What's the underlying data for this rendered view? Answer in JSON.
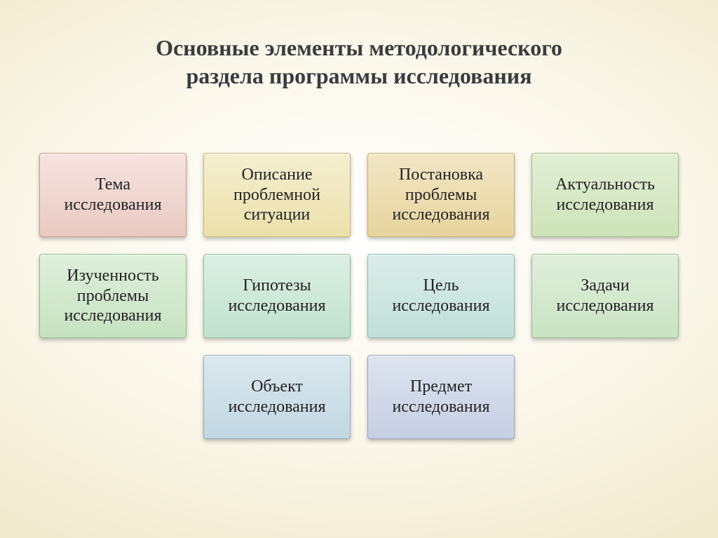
{
  "title_line1": "Основные элементы методологического",
  "title_line2": "раздела программы исследования",
  "title_fontsize": 32,
  "title_color": "#3b3b3b",
  "box_fontsize": 24,
  "boxes": [
    {
      "label": "Тема исследования",
      "row": 1,
      "col": 1,
      "bg_top": "#f7e4e0",
      "bg_bot": "#e9c9c2",
      "border": "#c59a90"
    },
    {
      "label": "Описание проблемной ситуации",
      "row": 1,
      "col": 2,
      "bg_top": "#f5efd0",
      "bg_bot": "#ece0ac",
      "border": "#c9b877"
    },
    {
      "label": "Постановка проблемы исследования",
      "row": 1,
      "col": 3,
      "bg_top": "#f2e6c5",
      "bg_bot": "#e7d49e",
      "border": "#c7ad6e"
    },
    {
      "label": "Актуальность исследования",
      "row": 1,
      "col": 4,
      "bg_top": "#e2efd6",
      "bg_bot": "#cde3b8",
      "border": "#9fbd87"
    },
    {
      "label": "Изученность проблемы исследования",
      "row": 2,
      "col": 1,
      "bg_top": "#dff0dc",
      "bg_bot": "#c6e2c1",
      "border": "#93bb8d"
    },
    {
      "label": "Гипотезы исследования",
      "row": 2,
      "col": 2,
      "bg_top": "#dcefe4",
      "bg_bot": "#c1e1cf",
      "border": "#8fbba2"
    },
    {
      "label": "Цель исследования",
      "row": 2,
      "col": 3,
      "bg_top": "#dbede9",
      "bg_bot": "#c1dfd9",
      "border": "#8eb9b1"
    },
    {
      "label": "Задачи исследования",
      "row": 2,
      "col": 4,
      "bg_top": "#e0efdc",
      "bg_bot": "#c9e3c3",
      "border": "#97bc90"
    },
    {
      "label": "Объект исследования",
      "row": 3,
      "col": 2,
      "bg_top": "#dbe8ee",
      "bg_bot": "#c2d7e2",
      "border": "#8fadbd"
    },
    {
      "label": "Предмет исследования",
      "row": 3,
      "col": 3,
      "bg_top": "#dde3ef",
      "bg_bot": "#c6cfe3",
      "border": "#99a4c1"
    }
  ]
}
